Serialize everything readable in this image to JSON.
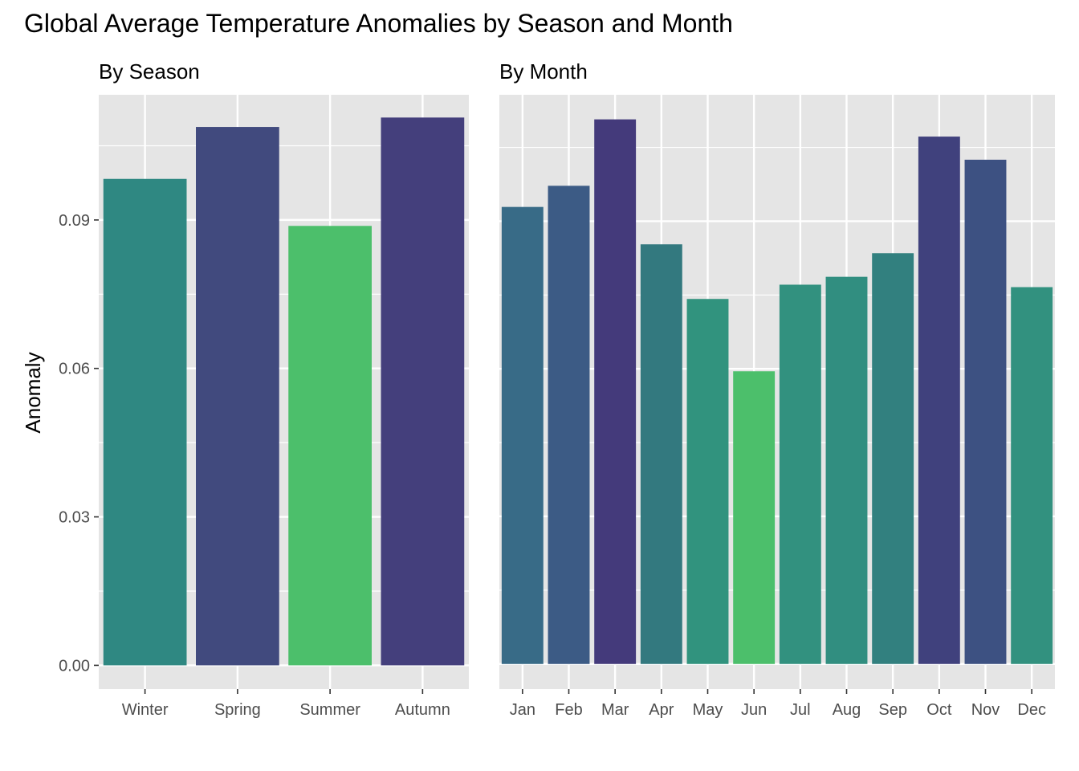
{
  "title": "Global Average Temperature Anomalies by Season and Month",
  "ylabel": "Anomaly",
  "colors": {
    "panel_bg": "#e5e5e5",
    "grid": "#ffffff",
    "tick_text": "#4d4d4d",
    "palette_low": "#4cbf6b",
    "palette_high": "#443a7b"
  },
  "chart_data": [
    {
      "type": "bar",
      "panel": "By Season",
      "subtitle": "By Season",
      "categories": [
        "Winter",
        "Spring",
        "Summer",
        "Autumn"
      ],
      "values": [
        0.0983,
        0.1088,
        0.0888,
        0.1107
      ],
      "colors": [
        "#2f8882",
        "#414a7e",
        "#4cbf6b",
        "#443f7c"
      ],
      "ylabel": "Anomaly",
      "ylim": [
        -0.0048,
        0.1153
      ],
      "yticks": [
        0.0,
        0.03,
        0.06,
        0.09
      ],
      "ytick_labels": [
        "0.00",
        "0.03",
        "0.06",
        "0.09"
      ],
      "grid": true,
      "legend": "none"
    },
    {
      "type": "bar",
      "panel": "By Month",
      "subtitle": "By Month",
      "categories": [
        "Jan",
        "Feb",
        "Mar",
        "Apr",
        "May",
        "Jun",
        "Jul",
        "Aug",
        "Sep",
        "Oct",
        "Nov",
        "Dec"
      ],
      "values": [
        0.0929,
        0.0972,
        0.1107,
        0.0853,
        0.0742,
        0.0595,
        0.0771,
        0.0787,
        0.0835,
        0.1072,
        0.1025,
        0.0766
      ],
      "colors": [
        "#386b87",
        "#3c5b85",
        "#443a7b",
        "#33797f",
        "#31937e",
        "#4cbf6b",
        "#32917f",
        "#318e80",
        "#32807f",
        "#40417d",
        "#3d5182",
        "#32917f"
      ],
      "ylim": [
        -0.0051,
        0.1157
      ],
      "grid": true,
      "legend": "none"
    }
  ]
}
